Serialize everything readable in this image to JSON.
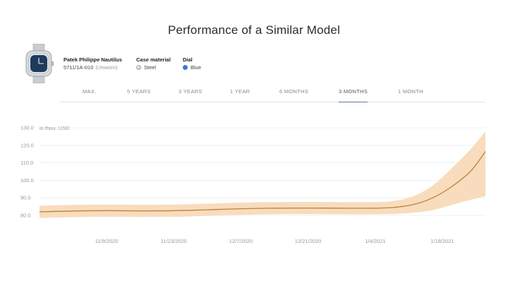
{
  "page": {
    "title": "Performance of a Similar Model"
  },
  "product": {
    "image_icon": "watch-image",
    "name": "Patek Philippe Nautilus",
    "reference": "5711/1A-010",
    "condition": "(Unworn)",
    "case_material_label": "Case material",
    "case_material_value": "Steel",
    "dial_label": "Dial",
    "dial_value": "Blue",
    "dial_color": "#3a78d8"
  },
  "tabs": [
    {
      "label": "MAX.",
      "active": false
    },
    {
      "label": "5 YEARS",
      "active": false
    },
    {
      "label": "3 YEARS",
      "active": false
    },
    {
      "label": "1 YEAR",
      "active": false
    },
    {
      "label": "6 MONTHS",
      "active": false
    },
    {
      "label": "3 MONTHS",
      "active": true
    },
    {
      "label": "1 MONTH",
      "active": false
    }
  ],
  "chart_data": {
    "type": "area",
    "unit_label": "in thou. USD",
    "yticks": [
      130.0,
      120.0,
      110.0,
      100.0,
      90.0,
      80.0
    ],
    "ytick_labels": [
      "130.0",
      "120.0",
      "110.0",
      "100.0",
      "90.0",
      "80.0"
    ],
    "ylim": [
      80,
      130
    ],
    "xticks": [
      "11/9/2020",
      "11/23/2020",
      "12/7/2020",
      "12/21/2020",
      "1/4/2021",
      "1/18/2021"
    ],
    "x": [
      "2020-10-26",
      "2020-11-02",
      "2020-11-09",
      "2020-11-16",
      "2020-11-23",
      "2020-11-30",
      "2020-12-07",
      "2020-12-14",
      "2020-12-21",
      "2020-12-28",
      "2021-01-04",
      "2021-01-08",
      "2021-01-12",
      "2021-01-16",
      "2021-01-20",
      "2021-01-24",
      "2021-01-27"
    ],
    "series": [
      {
        "values": [
          82.0,
          82.5,
          82.7,
          82.6,
          82.7,
          83.2,
          83.8,
          84.1,
          84.2,
          84.1,
          84.1,
          84.6,
          86.2,
          90.0,
          96.5,
          105.5,
          116.5
        ],
        "lower": [
          78.5,
          79.0,
          79.2,
          79.1,
          79.2,
          79.7,
          80.3,
          80.6,
          80.7,
          80.6,
          80.6,
          80.8,
          81.5,
          83.0,
          86.0,
          89.0,
          91.0
        ],
        "upper": [
          85.5,
          86.0,
          86.2,
          86.1,
          86.2,
          86.7,
          87.3,
          87.6,
          87.7,
          87.6,
          87.6,
          88.3,
          91.0,
          97.0,
          107.0,
          118.0,
          128.0
        ]
      }
    ],
    "line_color": "#b8833a",
    "band_color": "#f8dcbd",
    "grid": true
  }
}
